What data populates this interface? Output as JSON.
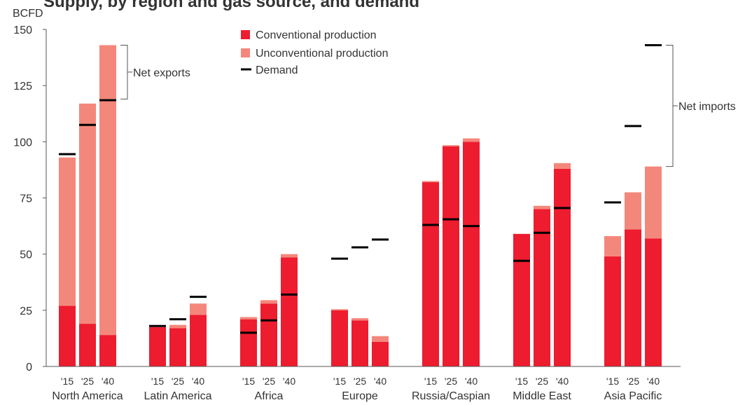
{
  "chart_data": {
    "type": "bar",
    "stacked": true,
    "title": "Supply, by region and gas source, and demand",
    "ylabel": "BCFD",
    "ylim": [
      0,
      150
    ],
    "yticks": [
      0,
      25,
      50,
      75,
      100,
      125,
      150
    ],
    "regions": [
      "North America",
      "Latin America",
      "Africa",
      "Europe",
      "Russia/Caspian",
      "Middle East",
      "Asia Pacific"
    ],
    "years": [
      "'15",
      "'25",
      "'40"
    ],
    "series": [
      {
        "name": "Conventional production",
        "color": "#ED1C2E",
        "values": [
          [
            27,
            19,
            14
          ],
          [
            17.5,
            17,
            23
          ],
          [
            21,
            28,
            48.5
          ],
          [
            25,
            20.5,
            11
          ],
          [
            82,
            98,
            100
          ],
          [
            59,
            70,
            88
          ],
          [
            49,
            61,
            57
          ]
        ]
      },
      {
        "name": "Unconventional production",
        "color": "#F4877B",
        "values": [
          [
            66,
            98,
            129
          ],
          [
            0,
            1.5,
            5
          ],
          [
            1,
            1.5,
            1.5
          ],
          [
            0.5,
            1,
            2.5
          ],
          [
            0.5,
            0.5,
            1.5
          ],
          [
            0,
            1.5,
            2.5
          ],
          [
            9,
            16.5,
            32
          ]
        ]
      }
    ],
    "demand": {
      "name": "Demand",
      "color": "#000000",
      "values": [
        [
          94.5,
          107.5,
          118.5
        ],
        [
          18,
          21,
          31
        ],
        [
          15,
          20.5,
          32
        ],
        [
          48,
          53,
          56.5
        ],
        [
          63,
          65.5,
          62.5
        ],
        [
          47,
          59.5,
          70.5
        ],
        [
          73,
          107,
          143
        ]
      ]
    },
    "annotations": [
      {
        "text": "Net exports",
        "region": "North America",
        "from": 119,
        "to": 143
      },
      {
        "text": "Net imports",
        "region": "Asia Pacific",
        "from": 89,
        "to": 143
      }
    ],
    "legend_position": "top-center",
    "grid": false
  }
}
